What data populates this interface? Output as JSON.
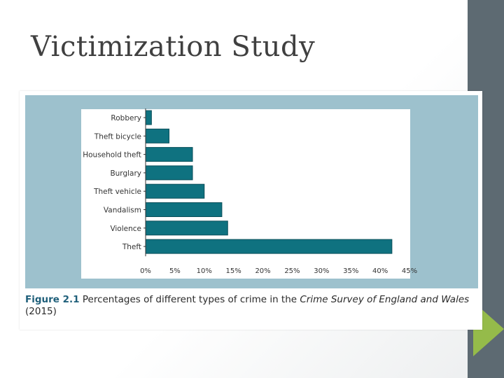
{
  "slide": {
    "title": "Victimization Study"
  },
  "colors": {
    "bar": "#0f7280",
    "bar_stroke": "#0b4f5a",
    "side_bar": "#5d6a72",
    "accent": "#95bb4a",
    "figure_bg": "#9dc1cd"
  },
  "caption": {
    "label": "Figure 2.1",
    "text_before": "Percentages of different types of crime in the",
    "italic": "Crime Survey of England and Wales",
    "text_after": "(2015)"
  },
  "chart_data": {
    "type": "bar",
    "orientation": "horizontal",
    "categories": [
      "Robbery",
      "Theft bicycle",
      "Household theft",
      "Burglary",
      "Theft vehicle",
      "Vandalism",
      "Violence",
      "Theft"
    ],
    "values": [
      1,
      4,
      8,
      8,
      10,
      13,
      14,
      42
    ],
    "xlim": [
      0,
      45
    ],
    "xticks": [
      "0%",
      "5%",
      "10%",
      "15%",
      "20%",
      "25%",
      "30%",
      "35%",
      "40%",
      "45%"
    ],
    "title": "",
    "xlabel": "",
    "ylabel": "",
    "grid": false
  }
}
